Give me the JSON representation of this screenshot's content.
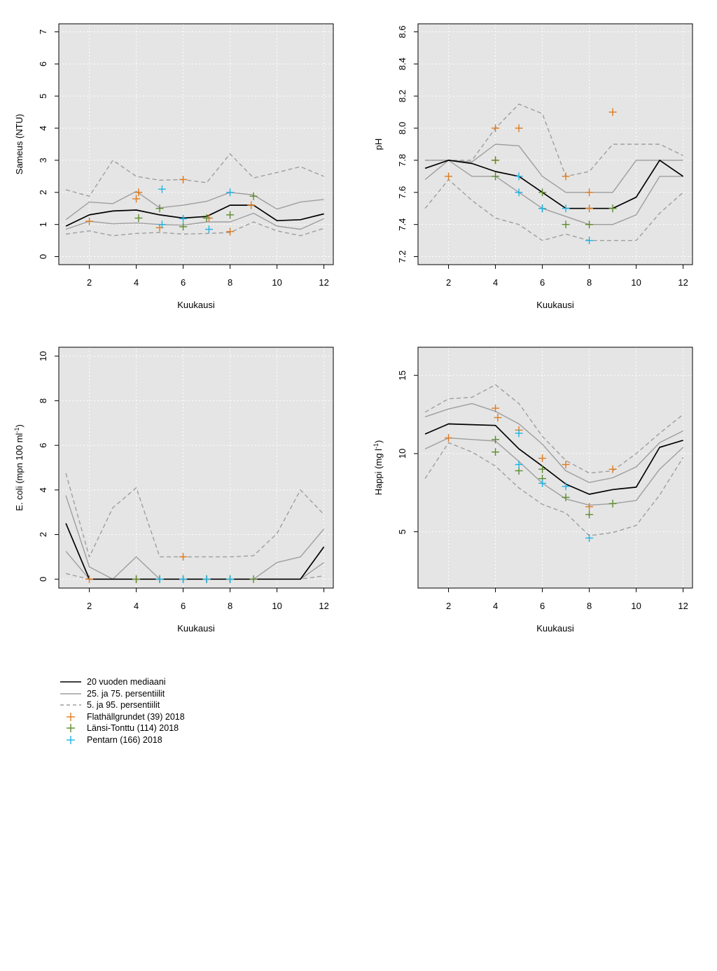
{
  "legend": {
    "items": [
      {
        "label": "20 vuoden mediaani",
        "kind": "median"
      },
      {
        "label": "25. ja 75. persentiilit",
        "kind": "q"
      },
      {
        "label": "5. ja 95. persentiilit",
        "kind": "p"
      },
      {
        "label": "Flathällgrundet (39) 2018",
        "kind": "marker",
        "color": "#E07B20"
      },
      {
        "label": "Länsi-Tonttu (114) 2018",
        "kind": "marker",
        "color": "#5E8C2E"
      },
      {
        "label": "Pentarn (166) 2018",
        "kind": "marker",
        "color": "#1EB4E6"
      }
    ]
  },
  "colors": {
    "panel_bg": "#E5E5E5",
    "median": "#000000",
    "quartile": "#9E9E9E",
    "percentile": "#9E9E9E",
    "grid": "#FFFFFF"
  },
  "chart_data": [
    {
      "type": "line",
      "xlabel": "Kuukausi",
      "ylabel": "Sameus (NTU)",
      "xlim": [
        0.7,
        12.4
      ],
      "ylim": [
        -0.25,
        7.25
      ],
      "xticks": [
        2,
        4,
        6,
        8,
        10,
        12
      ],
      "yticks": [
        0,
        1,
        2,
        3,
        4,
        5,
        6,
        7
      ],
      "grid": true,
      "x": [
        1,
        2,
        3,
        4,
        5,
        6,
        7,
        8,
        9,
        10,
        11,
        12
      ],
      "median": [
        0.95,
        1.3,
        1.42,
        1.45,
        1.3,
        1.2,
        1.25,
        1.6,
        1.6,
        1.12,
        1.15,
        1.33
      ],
      "q25": [
        0.85,
        1.1,
        1.02,
        1.05,
        1.0,
        0.98,
        1.08,
        1.08,
        1.35,
        0.95,
        0.85,
        1.18
      ],
      "q75": [
        1.15,
        1.7,
        1.65,
        2.03,
        1.52,
        1.6,
        1.72,
        2.0,
        1.92,
        1.48,
        1.7,
        1.78
      ],
      "p5": [
        0.7,
        0.8,
        0.65,
        0.72,
        0.75,
        0.7,
        0.72,
        0.75,
        1.08,
        0.8,
        0.65,
        0.88
      ],
      "p95": [
        2.08,
        1.88,
        3.0,
        2.5,
        2.38,
        2.4,
        2.3,
        3.2,
        2.45,
        2.62,
        2.8,
        2.5
      ],
      "series": [
        {
          "name": "Flathällgrundet (39) 2018",
          "x": [
            2,
            4,
            4.1,
            5,
            6,
            7.1,
            8,
            8.9
          ],
          "y": [
            1.1,
            1.8,
            2.0,
            0.9,
            2.4,
            1.2,
            0.78,
            1.6
          ]
        },
        {
          "name": "Länsi-Tonttu (114) 2018",
          "x": [
            4.1,
            5,
            6,
            7,
            8,
            9
          ],
          "y": [
            1.2,
            1.5,
            0.93,
            1.2,
            1.3,
            1.88
          ]
        },
        {
          "name": "Pentarn (166) 2018",
          "x": [
            5.1,
            5.1,
            6,
            7.1,
            8
          ],
          "y": [
            2.1,
            1.0,
            1.18,
            0.85,
            2.0
          ]
        }
      ]
    },
    {
      "type": "line",
      "xlabel": "Kuukausi",
      "ylabel": "pH",
      "xlim": [
        0.7,
        12.4
      ],
      "ylim": [
        7.15,
        8.65
      ],
      "xticks": [
        2,
        4,
        6,
        8,
        10,
        12
      ],
      "yticks": [
        7.2,
        7.4,
        7.6,
        7.8,
        8.0,
        8.2,
        8.4,
        8.6
      ],
      "grid": true,
      "x": [
        1,
        2,
        3,
        4,
        5,
        6,
        7,
        8,
        9,
        10,
        11,
        12
      ],
      "median": [
        7.75,
        7.8,
        7.78,
        7.73,
        7.7,
        7.6,
        7.5,
        7.5,
        7.5,
        7.57,
        7.8,
        7.7
      ],
      "q25": [
        7.68,
        7.8,
        7.7,
        7.7,
        7.6,
        7.5,
        7.45,
        7.4,
        7.4,
        7.46,
        7.7,
        7.7
      ],
      "q75": [
        7.8,
        7.8,
        7.79,
        7.9,
        7.89,
        7.7,
        7.6,
        7.6,
        7.6,
        7.8,
        7.8,
        7.8
      ],
      "p5": [
        7.5,
        7.68,
        7.55,
        7.44,
        7.4,
        7.3,
        7.34,
        7.3,
        7.3,
        7.3,
        7.47,
        7.6
      ],
      "p95": [
        7.8,
        7.8,
        7.8,
        8.0,
        8.15,
        8.09,
        7.7,
        7.73,
        7.9,
        7.9,
        7.9,
        7.83
      ],
      "series": [
        {
          "name": "Flathällgrundet (39) 2018",
          "x": [
            2,
            4,
            4,
            5,
            7,
            8,
            8,
            9
          ],
          "y": [
            7.7,
            8.0,
            7.8,
            8.0,
            7.7,
            7.6,
            7.5,
            8.1
          ]
        },
        {
          "name": "Länsi-Tonttu (114) 2018",
          "x": [
            4,
            4,
            6,
            6,
            7,
            8,
            9
          ],
          "y": [
            7.8,
            7.7,
            7.6,
            7.5,
            7.4,
            7.4,
            7.5
          ]
        },
        {
          "name": "Pentarn (166) 2018",
          "x": [
            5,
            5,
            6,
            7,
            8
          ],
          "y": [
            7.7,
            7.6,
            7.5,
            7.5,
            7.3
          ]
        }
      ]
    },
    {
      "type": "line",
      "xlabel": "Kuukausi",
      "ylabel": "E. coli (mpn 100 ml",
      "ylabel_sup": "-1",
      "ylabel_end": ")",
      "xlim": [
        0.7,
        12.4
      ],
      "ylim": [
        -0.4,
        10.4
      ],
      "xticks": [
        2,
        4,
        6,
        8,
        10,
        12
      ],
      "yticks": [
        0,
        2,
        4,
        6,
        8,
        10
      ],
      "grid": true,
      "x": [
        1,
        2,
        3,
        4,
        5,
        6,
        7,
        8,
        9,
        10,
        11,
        12
      ],
      "median": [
        2.5,
        0.0,
        0.0,
        0.0,
        0.0,
        0.0,
        0.0,
        0.0,
        0.0,
        0.0,
        0.0,
        1.45
      ],
      "q25": [
        1.25,
        0.0,
        0.0,
        0.0,
        0.0,
        0.0,
        0.0,
        0.0,
        0.0,
        0.0,
        0.0,
        0.75
      ],
      "q75": [
        3.75,
        0.55,
        0.0,
        1.0,
        0.0,
        0.0,
        0.0,
        0.0,
        0.0,
        0.75,
        1.0,
        2.25
      ],
      "p5": [
        0.25,
        0.0,
        0.0,
        0.0,
        0.0,
        0.0,
        0.0,
        0.0,
        0.0,
        0.0,
        0.0,
        0.15
      ],
      "p95": [
        4.75,
        1.0,
        3.2,
        4.1,
        1.0,
        1.0,
        1.0,
        1.0,
        1.05,
        2.05,
        4.0,
        2.9
      ],
      "series": [
        {
          "name": "Flathällgrundet (39) 2018",
          "x": [
            2,
            4,
            5,
            6,
            7,
            8
          ],
          "y": [
            0,
            0,
            0,
            1.0,
            0,
            0
          ]
        },
        {
          "name": "Länsi-Tonttu (114) 2018",
          "x": [
            4,
            5,
            6,
            7,
            8,
            9
          ],
          "y": [
            0,
            0,
            0,
            0,
            0,
            0
          ]
        },
        {
          "name": "Pentarn (166) 2018",
          "x": [
            5,
            6,
            7,
            8
          ],
          "y": [
            0,
            0,
            0,
            0
          ]
        }
      ]
    },
    {
      "type": "line",
      "xlabel": "Kuukausi",
      "ylabel": "Happi (mg l",
      "ylabel_sup": "-1",
      "ylabel_end": ")",
      "xlim": [
        0.7,
        12.4
      ],
      "ylim": [
        1.4,
        16.8
      ],
      "xticks": [
        2,
        4,
        6,
        8,
        10,
        12
      ],
      "yticks": [
        5,
        10,
        15
      ],
      "grid": true,
      "x": [
        1,
        2,
        3,
        4,
        5,
        6,
        7,
        8,
        9,
        10,
        11,
        12
      ],
      "median": [
        11.25,
        11.9,
        11.85,
        11.8,
        10.3,
        9.2,
        8.05,
        7.4,
        7.7,
        7.85,
        10.4,
        10.85
      ],
      "q25": [
        10.3,
        11.0,
        10.9,
        10.8,
        9.5,
        8.1,
        7.1,
        6.7,
        6.8,
        7.0,
        9.0,
        10.4
      ],
      "q75": [
        12.35,
        12.85,
        13.2,
        12.7,
        11.9,
        10.6,
        8.9,
        8.15,
        8.45,
        9.15,
        10.7,
        11.45
      ],
      "p5": [
        8.4,
        10.7,
        10.1,
        9.2,
        7.8,
        6.75,
        6.2,
        4.75,
        4.95,
        5.4,
        7.35,
        9.75
      ],
      "p95": [
        12.65,
        13.5,
        13.6,
        14.4,
        13.2,
        11.1,
        9.55,
        8.75,
        8.9,
        10.0,
        11.3,
        12.5
      ],
      "series": [
        {
          "name": "Flathällgrundet (39) 2018",
          "x": [
            2,
            4,
            4.1,
            5,
            6,
            7,
            8,
            9
          ],
          "y": [
            11.0,
            12.9,
            12.3,
            11.5,
            9.7,
            9.3,
            6.6,
            9.0
          ]
        },
        {
          "name": "Länsi-Tonttu (114) 2018",
          "x": [
            4,
            4,
            5,
            6,
            6,
            7,
            8,
            9
          ],
          "y": [
            10.9,
            10.1,
            8.9,
            8.4,
            9.0,
            7.2,
            6.1,
            6.8
          ]
        },
        {
          "name": "Pentarn (166) 2018",
          "x": [
            5,
            5,
            6,
            7,
            8
          ],
          "y": [
            11.3,
            9.3,
            8.1,
            7.9,
            4.6
          ]
        }
      ]
    }
  ]
}
